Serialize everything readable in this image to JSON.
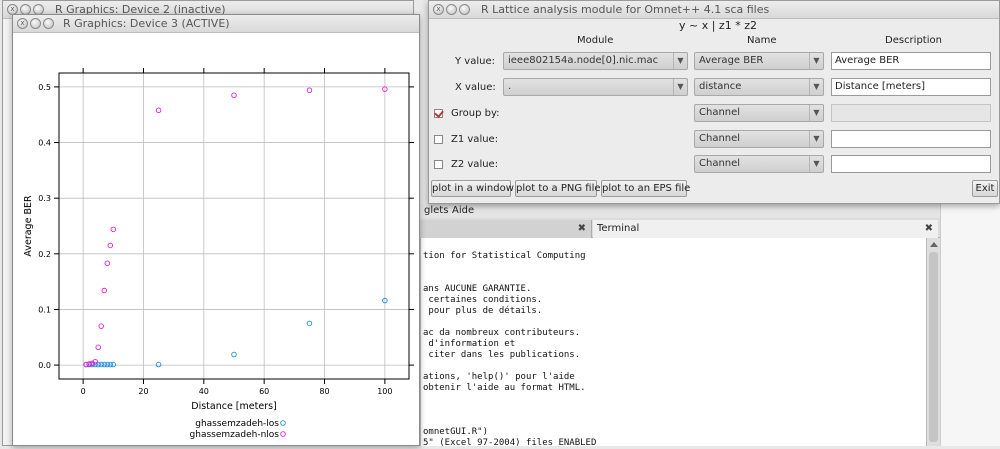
{
  "bg_window": {
    "title": "R Graphics: Device 2 (inactive)"
  },
  "plot_window": {
    "title": "R Graphics: Device 3 (ACTIVE)"
  },
  "dialog": {
    "title": "R Lattice analysis module for Omnet++ 4.1 sca files",
    "formula": "y ~ x | z1 * z2",
    "headers": {
      "module": "Module",
      "name": "Name",
      "description": "Description"
    },
    "rows": {
      "y": {
        "label": "Y value:",
        "module": "ieee802154a.node[0].nic.mac",
        "name": "Average BER",
        "description": "Average BER"
      },
      "x": {
        "label": "X value:",
        "module": ".",
        "name": "distance",
        "description": "Distance [meters]"
      },
      "group": {
        "label": "Group by:",
        "checked": true,
        "name": "Channel",
        "description": ""
      },
      "z1": {
        "label": "Z1 value:",
        "checked": false,
        "name": "Channel",
        "description": ""
      },
      "z2": {
        "label": "Z2 value:",
        "checked": false,
        "name": "Channel",
        "description": ""
      }
    },
    "buttons": {
      "window": "plot in a window",
      "png": "plot to a PNG file",
      "eps": "plot to an EPS file",
      "exit": "Exit"
    }
  },
  "rgui": {
    "menu": [
      "glets",
      "Aide"
    ],
    "terminal_tab": "Terminal",
    "close_glyph": "✖",
    "terminal_lines": [
      "",
      "tion for Statistical Computing",
      "",
      "",
      "ans AUCUNE GARANTIE.",
      " certaines conditions.",
      " pour plus de détails.",
      "",
      "ac da nombreux contributeurs.",
      " d'information et",
      " citer dans les publications.",
      "",
      "ations, 'help()' pour l'aide",
      "obtenir l'aide au format HTML.",
      "",
      "",
      "",
      "omnetGUI.R\")",
      "5\" (Excel 97-2004) files ENABLED"
    ]
  },
  "chart_data": {
    "type": "scatter",
    "xlabel": "Distance [meters]",
    "ylabel": "Average BER",
    "xlim": [
      -8,
      108
    ],
    "ylim": [
      -0.025,
      0.525
    ],
    "x_ticks": [
      0,
      20,
      40,
      60,
      80,
      100
    ],
    "y_ticks": [
      0.0,
      0.1,
      0.2,
      0.3,
      0.4,
      0.5
    ],
    "grid": true,
    "legend_position": "bottom",
    "series": [
      {
        "name": "ghassemzadeh-los",
        "color": "#1f8fd6",
        "x": [
          1,
          2,
          3,
          4,
          5,
          6,
          7,
          8,
          9,
          10,
          25,
          50,
          75,
          100
        ],
        "y": [
          0.001,
          0.001,
          0.001,
          0.001,
          0.001,
          0.001,
          0.001,
          0.001,
          0.001,
          0.001,
          0.001,
          0.019,
          0.075,
          0.116
        ]
      },
      {
        "name": "ghassemzadeh-nlos",
        "color": "#e020d0",
        "x": [
          1,
          2,
          3,
          4,
          5,
          6,
          7,
          8,
          9,
          10,
          25,
          50,
          75,
          100
        ],
        "y": [
          0.001,
          0.002,
          0.003,
          0.006,
          0.032,
          0.07,
          0.134,
          0.183,
          0.215,
          0.244,
          0.458,
          0.485,
          0.494,
          0.496
        ]
      }
    ]
  }
}
